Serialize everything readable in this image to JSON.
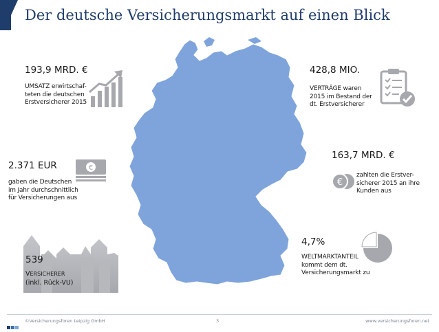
{
  "title": "Der deutsche Versicherungsmarkt auf einen Blick",
  "colors": {
    "brand": "#1f3d6b",
    "map": "#7ea4db",
    "icon_gray": "#a6a8ad"
  },
  "stats": {
    "umsatz": {
      "value": "193,9 MRD. €",
      "line1": "UMSATZ erwirtschaf-",
      "line2": "teten die deutschen",
      "line3": "Erstversicherer 2015",
      "icon": "rising-bar-chart-icon"
    },
    "vertraege": {
      "value": "428,8 MIO.",
      "line1": "VERTRÄGE waren",
      "line2": "2015 im Bestand der",
      "line3": "dt. Erstversicherer",
      "icon": "checklist-clipboard-icon"
    },
    "ausgaben": {
      "value": "2.371 EUR",
      "line1": "gaben die Deutschen",
      "line2": "im Jahr durchschnittlich",
      "line3": "für Versicherungen aus",
      "icon": "banknotes-icon"
    },
    "zahlungen": {
      "value": "163,7 MRD. €",
      "line1": "zahlten die Erstver-",
      "line2": "sicherer 2015 an ihre",
      "line3": "Kunden aus",
      "icon": "euro-coins-icon"
    },
    "weltmarkt": {
      "value": "4,7%",
      "line1": "WELTMARKTANTEIL",
      "line2": "kommt dem dt.",
      "line3": "Versicherungsmarkt zu",
      "icon": "pie-chart-icon"
    },
    "versicherer": {
      "value": "539",
      "line1_cap": "V",
      "line1_rest": "ERSICHERER",
      "line2": "(inkl. Rück-VU)",
      "icon": "factory-buildings-icon"
    }
  },
  "footer": {
    "left": "©Versicherungsforen Leipzig GmbH",
    "page": "3",
    "right": "www.versicherungsforen.net"
  }
}
